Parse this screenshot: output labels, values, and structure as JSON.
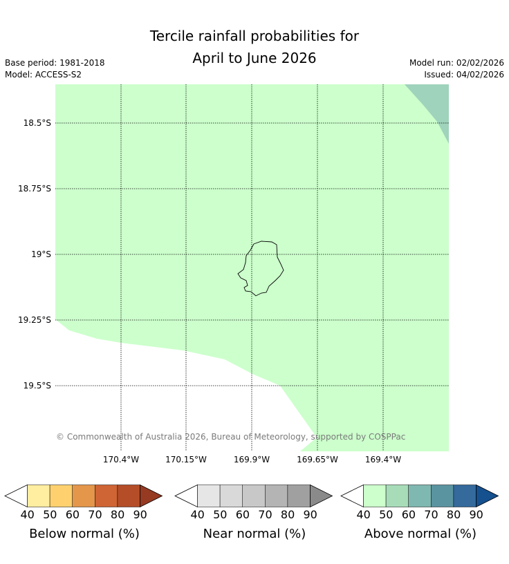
{
  "title_line1": "Tercile rainfall probabilities for",
  "title_line2": "April to June 2026",
  "meta_left": {
    "base_period": "Base period: 1981-2018",
    "model": "Model: ACCESS-S2"
  },
  "meta_right": {
    "model_run": "Model run: 02/02/2026",
    "issued": "Issued: 04/02/2026"
  },
  "map": {
    "lat_labels": [
      "18.5°S",
      "18.75°S",
      "19°S",
      "19.25°S",
      "19.5°S"
    ],
    "lon_labels": [
      "170.4°W",
      "170.15°W",
      "169.9°W",
      "169.65°W",
      "169.4°W"
    ],
    "copyright": "© Commonwealth of Australia 2026, Bureau of Meteorology, supported by COSPPac",
    "region_colors": {
      "above_40_50": "#ccffcc",
      "above_50_60": "#9fd3bb",
      "no_signal": "#ffffff"
    }
  },
  "colorbars": [
    {
      "title": "Below normal (%)",
      "ticks": [
        "40",
        "50",
        "60",
        "70",
        "80",
        "90"
      ],
      "colors": [
        "#ffeda0",
        "#fed16e",
        "#e4964a",
        "#cf6434",
        "#b44d28",
        "#963a22"
      ]
    },
    {
      "title": "Near normal (%)",
      "ticks": [
        "40",
        "50",
        "60",
        "70",
        "80",
        "90"
      ],
      "colors": [
        "#e6e6e6",
        "#d9d9d9",
        "#c8c8c8",
        "#b4b4b4",
        "#a0a0a0",
        "#8a8a8a"
      ]
    },
    {
      "title": "Above normal (%)",
      "ticks": [
        "40",
        "50",
        "60",
        "70",
        "80",
        "90"
      ],
      "colors": [
        "#ccffcc",
        "#a8dcb9",
        "#7fb8b0",
        "#5a94a0",
        "#346a9c",
        "#15508f"
      ]
    }
  ]
}
